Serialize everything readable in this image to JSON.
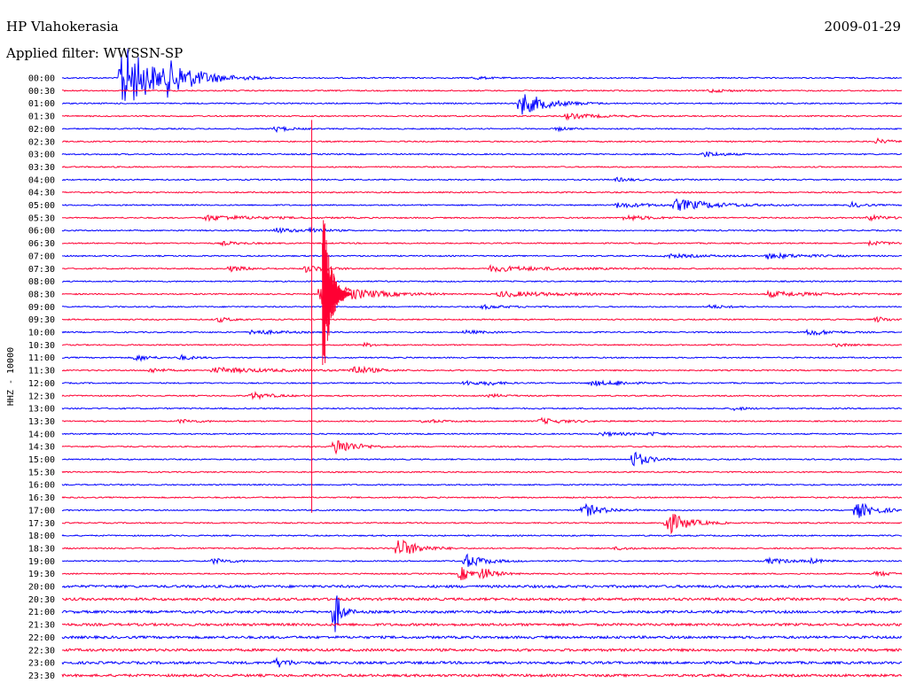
{
  "header": {
    "station": "HP Vlahokerasia",
    "date": "2009-01-29",
    "filter": "Applied filter: WWSSN-SP"
  },
  "chart_data": {
    "type": "line",
    "subtype": "helicorder",
    "ylabel": "HHZ - 10000",
    "colors": [
      "#0000ff",
      "#ff0033"
    ],
    "rows": [
      {
        "time": "00:00",
        "color": "#0000ff",
        "events": [
          {
            "x": 0.07,
            "a": 42,
            "d": 0.05
          },
          {
            "x": 0.125,
            "a": 22,
            "d": 0.05
          },
          {
            "x": 0.49,
            "a": 2,
            "d": 0.02
          }
        ]
      },
      {
        "time": "00:30",
        "color": "#ff0033",
        "events": [
          {
            "x": 0.77,
            "a": 2,
            "d": 0.03
          }
        ]
      },
      {
        "time": "01:00",
        "color": "#0000ff",
        "events": [
          {
            "x": 0.545,
            "a": 14,
            "d": 0.04
          }
        ]
      },
      {
        "time": "01:30",
        "color": "#ff0033",
        "events": [
          {
            "x": 0.6,
            "a": 3,
            "d": 0.05
          }
        ]
      },
      {
        "time": "02:00",
        "color": "#0000ff",
        "events": [
          {
            "x": 0.255,
            "a": 3,
            "d": 0.02
          },
          {
            "x": 0.59,
            "a": 2,
            "d": 0.02
          }
        ]
      },
      {
        "time": "02:30",
        "color": "#ff0033",
        "events": [
          {
            "x": 0.97,
            "a": 3,
            "d": 0.02
          }
        ]
      },
      {
        "time": "03:00",
        "color": "#0000ff",
        "events": [
          {
            "x": 0.765,
            "a": 3,
            "d": 0.03
          }
        ]
      },
      {
        "time": "03:30",
        "color": "#ff0033",
        "events": []
      },
      {
        "time": "04:00",
        "color": "#0000ff",
        "events": [
          {
            "x": 0.66,
            "a": 2,
            "d": 0.03
          }
        ]
      },
      {
        "time": "04:30",
        "color": "#ff0033",
        "events": []
      },
      {
        "time": "05:00",
        "color": "#0000ff",
        "events": [
          {
            "x": 0.66,
            "a": 3,
            "d": 0.05
          },
          {
            "x": 0.73,
            "a": 7,
            "d": 0.06
          },
          {
            "x": 0.94,
            "a": 3,
            "d": 0.02
          }
        ]
      },
      {
        "time": "05:30",
        "color": "#ff0033",
        "events": [
          {
            "x": 0.17,
            "a": 3,
            "d": 0.08
          },
          {
            "x": 0.67,
            "a": 3,
            "d": 0.04
          },
          {
            "x": 0.96,
            "a": 3,
            "d": 0.03
          }
        ]
      },
      {
        "time": "06:00",
        "color": "#0000ff",
        "events": [
          {
            "x": 0.255,
            "a": 3,
            "d": 0.03
          },
          {
            "x": 0.295,
            "a": 4,
            "d": 0.02
          }
        ]
      },
      {
        "time": "06:30",
        "color": "#ff0033",
        "events": [
          {
            "x": 0.19,
            "a": 2,
            "d": 0.03
          },
          {
            "x": 0.96,
            "a": 2,
            "d": 0.04
          }
        ]
      },
      {
        "time": "07:00",
        "color": "#0000ff",
        "events": [
          {
            "x": 0.72,
            "a": 2,
            "d": 0.06
          },
          {
            "x": 0.84,
            "a": 3,
            "d": 0.06
          }
        ]
      },
      {
        "time": "07:30",
        "color": "#ff0033",
        "events": [
          {
            "x": 0.2,
            "a": 3,
            "d": 0.03
          },
          {
            "x": 0.29,
            "a": 4,
            "d": 0.03
          },
          {
            "x": 0.51,
            "a": 3,
            "d": 0.1
          }
        ]
      },
      {
        "time": "08:00",
        "color": "#0000ff",
        "events": []
      },
      {
        "time": "08:30",
        "color": "#ff0033",
        "events": [
          {
            "x": 0.308,
            "a": 14,
            "d": 0.06
          },
          {
            "x": 0.52,
            "a": 3,
            "d": 0.1
          },
          {
            "x": 0.84,
            "a": 3,
            "d": 0.08
          }
        ]
      },
      {
        "time": "09:00",
        "color": "#0000ff",
        "events": [
          {
            "x": 0.5,
            "a": 2,
            "d": 0.04
          },
          {
            "x": 0.77,
            "a": 2,
            "d": 0.03
          }
        ]
      },
      {
        "time": "09:30",
        "color": "#ff0033",
        "events": [
          {
            "x": 0.185,
            "a": 3,
            "d": 0.02
          },
          {
            "x": 0.97,
            "a": 3,
            "d": 0.02
          }
        ]
      },
      {
        "time": "10:00",
        "color": "#0000ff",
        "events": [
          {
            "x": 0.225,
            "a": 3,
            "d": 0.04
          },
          {
            "x": 0.48,
            "a": 2,
            "d": 0.03
          },
          {
            "x": 0.89,
            "a": 4,
            "d": 0.03
          }
        ]
      },
      {
        "time": "10:30",
        "color": "#ff0033",
        "events": [
          {
            "x": 0.36,
            "a": 2,
            "d": 0.02
          },
          {
            "x": 0.92,
            "a": 2,
            "d": 0.02
          }
        ]
      },
      {
        "time": "11:00",
        "color": "#0000ff",
        "events": [
          {
            "x": 0.088,
            "a": 4,
            "d": 0.02
          },
          {
            "x": 0.14,
            "a": 3,
            "d": 0.02
          }
        ]
      },
      {
        "time": "11:30",
        "color": "#ff0033",
        "events": [
          {
            "x": 0.105,
            "a": 3,
            "d": 0.02
          },
          {
            "x": 0.18,
            "a": 3,
            "d": 0.1
          },
          {
            "x": 0.345,
            "a": 6,
            "d": 0.03
          }
        ]
      },
      {
        "time": "12:00",
        "color": "#0000ff",
        "events": [
          {
            "x": 0.48,
            "a": 3,
            "d": 0.02
          },
          {
            "x": 0.505,
            "a": 3,
            "d": 0.02
          },
          {
            "x": 0.63,
            "a": 3,
            "d": 0.04
          },
          {
            "x": 0.66,
            "a": 3,
            "d": 0.02
          }
        ]
      },
      {
        "time": "12:30",
        "color": "#ff0033",
        "events": [
          {
            "x": 0.225,
            "a": 4,
            "d": 0.03
          },
          {
            "x": 0.51,
            "a": 2,
            "d": 0.02
          }
        ]
      },
      {
        "time": "13:00",
        "color": "#0000ff",
        "events": [
          {
            "x": 0.8,
            "a": 2,
            "d": 0.02
          }
        ]
      },
      {
        "time": "13:30",
        "color": "#ff0033",
        "events": [
          {
            "x": 0.14,
            "a": 2,
            "d": 0.03
          },
          {
            "x": 0.43,
            "a": 2,
            "d": 0.03
          },
          {
            "x": 0.57,
            "a": 3,
            "d": 0.04
          }
        ]
      },
      {
        "time": "14:00",
        "color": "#0000ff",
        "events": [
          {
            "x": 0.64,
            "a": 2,
            "d": 0.05
          },
          {
            "x": 0.7,
            "a": 2,
            "d": 0.02
          }
        ]
      },
      {
        "time": "14:30",
        "color": "#ff0033",
        "events": [
          {
            "x": 0.325,
            "a": 10,
            "d": 0.03
          }
        ]
      },
      {
        "time": "15:00",
        "color": "#0000ff",
        "events": [
          {
            "x": 0.68,
            "a": 11,
            "d": 0.02
          }
        ]
      },
      {
        "time": "15:30",
        "color": "#ff0033",
        "events": []
      },
      {
        "time": "16:00",
        "color": "#0000ff",
        "events": []
      },
      {
        "time": "16:30",
        "color": "#ff0033",
        "events": []
      },
      {
        "time": "17:00",
        "color": "#0000ff",
        "events": [
          {
            "x": 0.62,
            "a": 8,
            "d": 0.03
          },
          {
            "x": 0.945,
            "a": 10,
            "d": 0.03
          }
        ]
      },
      {
        "time": "17:30",
        "color": "#ff0033",
        "events": [
          {
            "x": 0.72,
            "a": 14,
            "d": 0.03
          }
        ]
      },
      {
        "time": "18:00",
        "color": "#0000ff",
        "events": []
      },
      {
        "time": "18:30",
        "color": "#ff0033",
        "events": [
          {
            "x": 0.4,
            "a": 12,
            "d": 0.03
          },
          {
            "x": 0.66,
            "a": 2,
            "d": 0.02
          }
        ]
      },
      {
        "time": "19:00",
        "color": "#0000ff",
        "events": [
          {
            "x": 0.18,
            "a": 3,
            "d": 0.03
          },
          {
            "x": 0.48,
            "a": 8,
            "d": 0.03
          },
          {
            "x": 0.84,
            "a": 3,
            "d": 0.04
          },
          {
            "x": 0.89,
            "a": 3,
            "d": 0.02
          }
        ]
      },
      {
        "time": "19:30",
        "color": "#ff0033",
        "events": [
          {
            "x": 0.475,
            "a": 8,
            "d": 0.02
          },
          {
            "x": 0.5,
            "a": 8,
            "d": 0.02
          },
          {
            "x": 0.97,
            "a": 3,
            "d": 0.02
          }
        ]
      },
      {
        "time": "20:00",
        "color": "#0000ff",
        "events": []
      },
      {
        "time": "20:30",
        "color": "#ff0033",
        "events": []
      },
      {
        "time": "21:00",
        "color": "#0000ff",
        "events": [
          {
            "x": 0.325,
            "a": 26,
            "d": 0.01
          }
        ]
      },
      {
        "time": "21:30",
        "color": "#ff0033",
        "events": []
      },
      {
        "time": "22:00",
        "color": "#0000ff",
        "events": []
      },
      {
        "time": "22:30",
        "color": "#ff0033",
        "events": []
      },
      {
        "time": "23:00",
        "color": "#0000ff",
        "events": [
          {
            "x": 0.255,
            "a": 5,
            "d": 0.02
          }
        ]
      },
      {
        "time": "23:30",
        "color": "#ff0033",
        "events": []
      }
    ],
    "main_event": {
      "row": "08:30",
      "x": 0.31,
      "amplitude": 225,
      "color": "#ff0033"
    },
    "spike": {
      "from_row": "02:00",
      "to_row": "17:00",
      "x": 0.31,
      "color": "#ff0033"
    }
  }
}
